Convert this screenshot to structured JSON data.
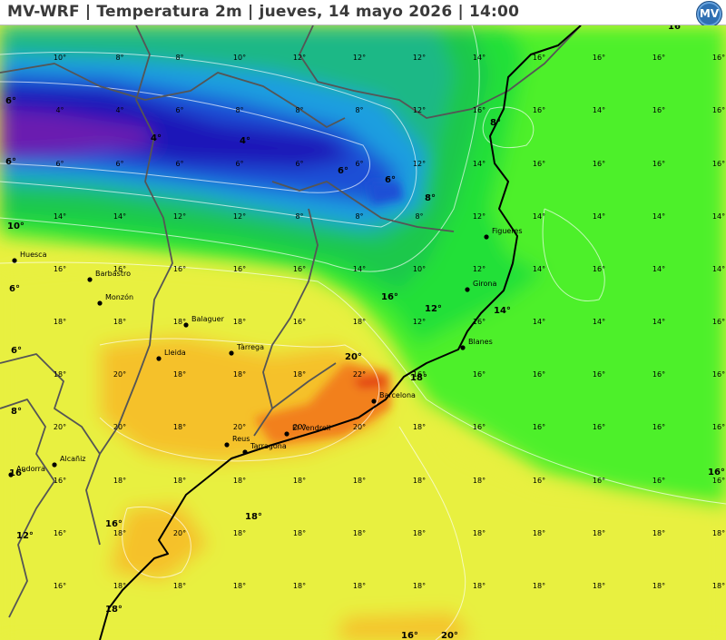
{
  "title": "MV-WRF | Temperatura 2m | jueves, 14 mayo 2026 | 14:00",
  "logo": "MV",
  "colors": {
    "t4": "#1a14b8",
    "t6": "#1f4fd6",
    "t8": "#1f9ee0",
    "t10": "#1bb886",
    "t12": "#1fc84c",
    "t14": "#22e038",
    "t16": "#4ef02a",
    "t18": "#e8f040",
    "t20": "#f5c12a",
    "t22": "#f2801e",
    "t24": "#e23a14",
    "purple": "#6a1fb0",
    "coast": "#000000",
    "border": "#555555"
  },
  "cities": [
    {
      "name": "Huesca"
    },
    {
      "name": "Barbastro"
    },
    {
      "name": "Monzón"
    },
    {
      "name": "Balaguer"
    },
    {
      "name": "Lleida"
    },
    {
      "name": "Tàrrega"
    },
    {
      "name": "Figueres"
    },
    {
      "name": "Girona"
    },
    {
      "name": "Blanes"
    },
    {
      "name": "Barcelona"
    },
    {
      "name": "El Vendrell"
    },
    {
      "name": "Reus"
    },
    {
      "name": "Tarragona"
    },
    {
      "name": "Alcañiz"
    },
    {
      "name": "Andorra"
    }
  ],
  "grid_rows": [
    [
      "10°",
      "8°",
      "8°",
      "10°",
      "12°",
      "12°",
      "12°",
      "14°",
      "16°",
      "16°",
      "16°",
      "16°"
    ],
    [
      "4°",
      "4°",
      "6°",
      "8°",
      "8°",
      "8°",
      "12°",
      "16°",
      "16°",
      "14°",
      "16°",
      "16°"
    ],
    [
      "6°",
      "6°",
      "6°",
      "6°",
      "6°",
      "6°",
      "12°",
      "14°",
      "16°",
      "16°",
      "16°",
      "16°"
    ],
    [
      "14°",
      "14°",
      "12°",
      "12°",
      "8°",
      "8°",
      "8°",
      "12°",
      "14°",
      "14°",
      "14°",
      "14°"
    ],
    [
      "16°",
      "16°",
      "16°",
      "16°",
      "16°",
      "14°",
      "10°",
      "12°",
      "14°",
      "16°",
      "14°",
      "14°"
    ],
    [
      "18°",
      "18°",
      "18°",
      "18°",
      "16°",
      "18°",
      "12°",
      "16°",
      "14°",
      "14°",
      "14°",
      "16°"
    ],
    [
      "18°",
      "20°",
      "18°",
      "18°",
      "18°",
      "22°",
      "16°",
      "16°",
      "16°",
      "16°",
      "16°",
      "16°"
    ],
    [
      "20°",
      "20°",
      "18°",
      "20°",
      "20°",
      "20°",
      "18°",
      "16°",
      "16°",
      "16°",
      "16°",
      "16°"
    ],
    [
      "16°",
      "18°",
      "18°",
      "18°",
      "18°",
      "18°",
      "18°",
      "18°",
      "16°",
      "16°",
      "16°",
      "16°"
    ],
    [
      "16°",
      "18°",
      "20°",
      "18°",
      "18°",
      "18°",
      "18°",
      "18°",
      "18°",
      "18°",
      "18°",
      "18°"
    ],
    [
      "16°",
      "18°",
      "18°",
      "18°",
      "18°",
      "18°",
      "18°",
      "18°",
      "18°",
      "18°",
      "18°",
      "18°"
    ]
  ],
  "contour_labels": [
    {
      "text": "16°"
    },
    {
      "text": "6°"
    },
    {
      "text": "6°"
    },
    {
      "text": "4°"
    },
    {
      "text": "4°"
    },
    {
      "text": "6°"
    },
    {
      "text": "6°"
    },
    {
      "text": "8°"
    },
    {
      "text": "8°"
    },
    {
      "text": "16°"
    },
    {
      "text": "10°"
    },
    {
      "text": "6°"
    },
    {
      "text": "6°"
    },
    {
      "text": "8°"
    },
    {
      "text": "16°"
    },
    {
      "text": "12°"
    },
    {
      "text": "14°"
    },
    {
      "text": "20°"
    },
    {
      "text": "18°"
    },
    {
      "text": "12°"
    },
    {
      "text": "16°"
    },
    {
      "text": "18°"
    },
    {
      "text": "18°"
    },
    {
      "text": "20°"
    },
    {
      "text": "16°"
    },
    {
      "text": "16°"
    }
  ]
}
